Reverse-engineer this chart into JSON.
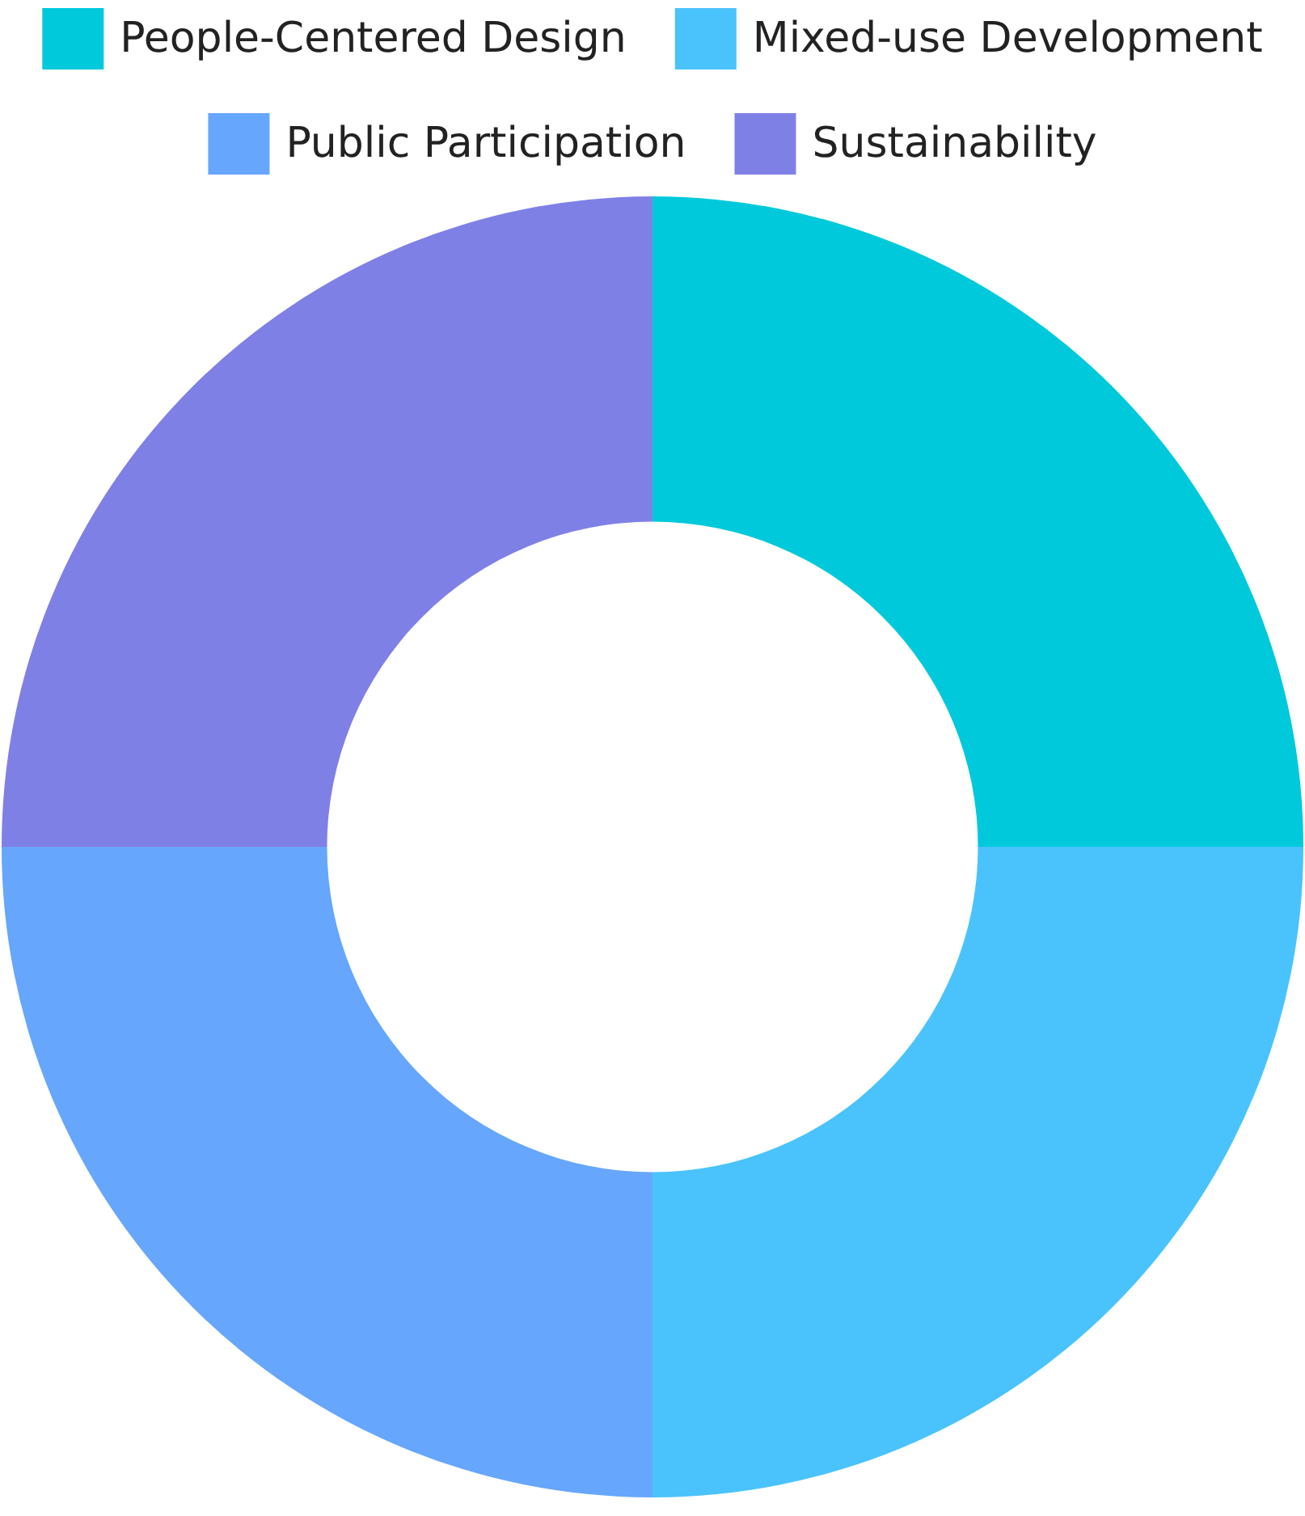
{
  "chart_data": {
    "type": "donut",
    "categories": [
      "People-Centered Design",
      "Mixed-use Development",
      "Public Participation",
      "Sustainability"
    ],
    "values": [
      25,
      25,
      25,
      25
    ],
    "colors": [
      "#00c9dc",
      "#4ac3fd",
      "#66a6fc",
      "#7f80e6"
    ],
    "legend": "top"
  }
}
